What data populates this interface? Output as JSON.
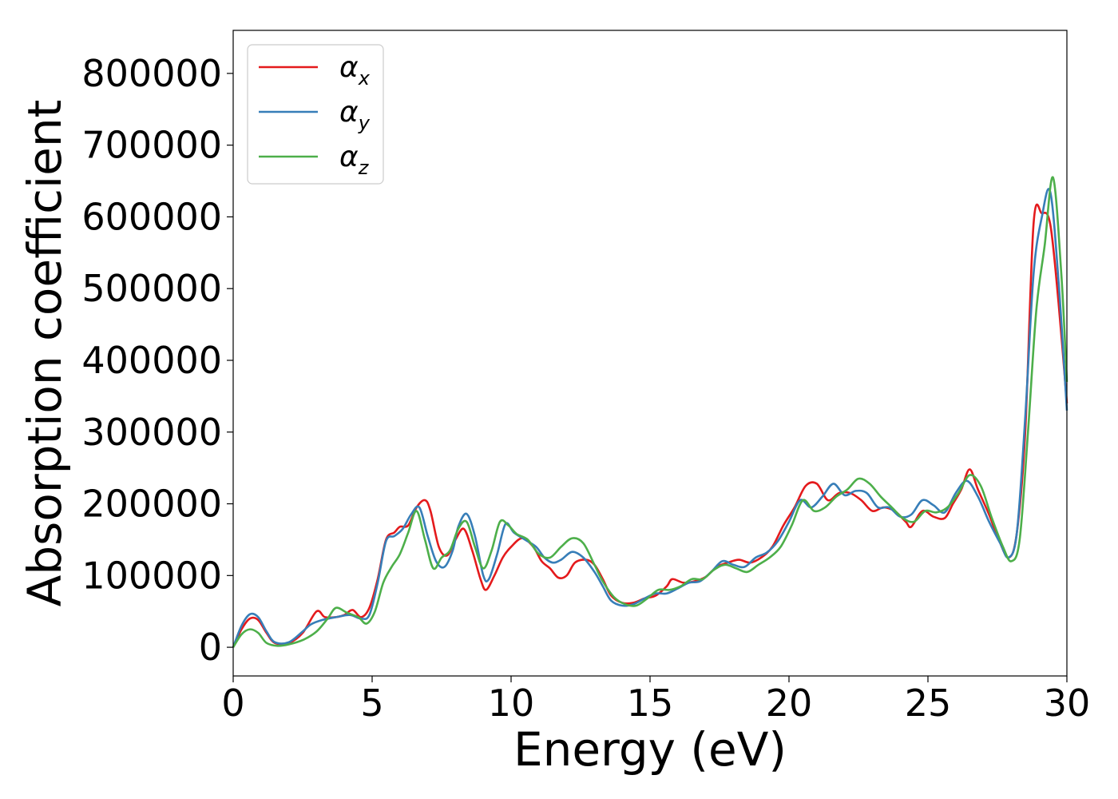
{
  "chart_data": {
    "type": "line",
    "title": "",
    "xlabel": "Energy (eV)",
    "ylabel": "Absorption coefficient",
    "xlim": [
      0,
      30
    ],
    "ylim": [
      -40000,
      860000
    ],
    "xticks": [
      0,
      5,
      10,
      15,
      20,
      25,
      30
    ],
    "xtick_labels": [
      "0",
      "5",
      "10",
      "15",
      "20",
      "25",
      "30"
    ],
    "yticks": [
      0,
      100000,
      200000,
      300000,
      400000,
      500000,
      600000,
      700000,
      800000
    ],
    "ytick_labels": [
      "0",
      "100000",
      "200000",
      "300000",
      "400000",
      "500000",
      "600000",
      "700000",
      "800000"
    ],
    "grid": false,
    "legend_position": "top-left",
    "series": [
      {
        "name": "α",
        "subscript": "x",
        "color": "#e41a1c",
        "points": [
          [
            0,
            0
          ],
          [
            0.3,
            25000
          ],
          [
            0.6,
            40000
          ],
          [
            0.9,
            38000
          ],
          [
            1.2,
            20000
          ],
          [
            1.5,
            6000
          ],
          [
            2.0,
            6000
          ],
          [
            2.5,
            20000
          ],
          [
            3.0,
            50000
          ],
          [
            3.3,
            42000
          ],
          [
            3.7,
            42000
          ],
          [
            4.0,
            45000
          ],
          [
            4.3,
            52000
          ],
          [
            4.6,
            42000
          ],
          [
            4.9,
            55000
          ],
          [
            5.2,
            95000
          ],
          [
            5.5,
            150000
          ],
          [
            5.8,
            160000
          ],
          [
            6.0,
            168000
          ],
          [
            6.3,
            170000
          ],
          [
            6.6,
            195000
          ],
          [
            6.9,
            205000
          ],
          [
            7.1,
            190000
          ],
          [
            7.4,
            140000
          ],
          [
            7.7,
            128000
          ],
          [
            8.0,
            150000
          ],
          [
            8.3,
            165000
          ],
          [
            8.6,
            135000
          ],
          [
            8.9,
            95000
          ],
          [
            9.1,
            80000
          ],
          [
            9.4,
            100000
          ],
          [
            9.7,
            125000
          ],
          [
            10.0,
            140000
          ],
          [
            10.4,
            152000
          ],
          [
            10.8,
            140000
          ],
          [
            11.1,
            120000
          ],
          [
            11.4,
            110000
          ],
          [
            11.7,
            97000
          ],
          [
            12.0,
            100000
          ],
          [
            12.3,
            118000
          ],
          [
            12.7,
            122000
          ],
          [
            13.0,
            115000
          ],
          [
            13.3,
            95000
          ],
          [
            13.6,
            72000
          ],
          [
            14.0,
            62000
          ],
          [
            14.4,
            62000
          ],
          [
            14.8,
            68000
          ],
          [
            15.2,
            72000
          ],
          [
            15.6,
            85000
          ],
          [
            15.8,
            95000
          ],
          [
            16.2,
            90000
          ],
          [
            16.6,
            92000
          ],
          [
            17.0,
            98000
          ],
          [
            17.4,
            112000
          ],
          [
            17.8,
            118000
          ],
          [
            18.2,
            122000
          ],
          [
            18.6,
            118000
          ],
          [
            19.0,
            125000
          ],
          [
            19.4,
            140000
          ],
          [
            19.8,
            170000
          ],
          [
            20.2,
            195000
          ],
          [
            20.6,
            225000
          ],
          [
            21.0,
            228000
          ],
          [
            21.4,
            205000
          ],
          [
            21.8,
            215000
          ],
          [
            22.2,
            215000
          ],
          [
            22.6,
            205000
          ],
          [
            23.0,
            190000
          ],
          [
            23.4,
            195000
          ],
          [
            23.8,
            190000
          ],
          [
            24.2,
            175000
          ],
          [
            24.4,
            168000
          ],
          [
            24.8,
            190000
          ],
          [
            25.2,
            182000
          ],
          [
            25.6,
            180000
          ],
          [
            25.9,
            200000
          ],
          [
            26.2,
            220000
          ],
          [
            26.5,
            248000
          ],
          [
            26.8,
            220000
          ],
          [
            27.2,
            185000
          ],
          [
            27.5,
            155000
          ],
          [
            27.9,
            125000
          ],
          [
            28.2,
            160000
          ],
          [
            28.5,
            300000
          ],
          [
            28.8,
            590000
          ],
          [
            29.1,
            605000
          ],
          [
            29.4,
            590000
          ],
          [
            29.7,
            480000
          ],
          [
            30.0,
            340000
          ]
        ]
      },
      {
        "name": "α",
        "subscript": "y",
        "color": "#377eb8",
        "points": [
          [
            0,
            0
          ],
          [
            0.3,
            30000
          ],
          [
            0.6,
            46000
          ],
          [
            0.9,
            42000
          ],
          [
            1.2,
            22000
          ],
          [
            1.5,
            7000
          ],
          [
            2.0,
            7000
          ],
          [
            2.5,
            22000
          ],
          [
            2.8,
            32000
          ],
          [
            3.2,
            38000
          ],
          [
            3.7,
            42000
          ],
          [
            4.2,
            45000
          ],
          [
            4.6,
            40000
          ],
          [
            4.9,
            45000
          ],
          [
            5.2,
            90000
          ],
          [
            5.5,
            148000
          ],
          [
            5.8,
            155000
          ],
          [
            6.1,
            165000
          ],
          [
            6.4,
            185000
          ],
          [
            6.7,
            195000
          ],
          [
            7.0,
            155000
          ],
          [
            7.3,
            120000
          ],
          [
            7.6,
            112000
          ],
          [
            7.9,
            135000
          ],
          [
            8.1,
            168000
          ],
          [
            8.4,
            186000
          ],
          [
            8.7,
            155000
          ],
          [
            9.0,
            100000
          ],
          [
            9.2,
            95000
          ],
          [
            9.5,
            130000
          ],
          [
            9.8,
            172000
          ],
          [
            10.1,
            160000
          ],
          [
            10.5,
            150000
          ],
          [
            10.9,
            140000
          ],
          [
            11.2,
            125000
          ],
          [
            11.5,
            118000
          ],
          [
            11.8,
            122000
          ],
          [
            12.2,
            133000
          ],
          [
            12.6,
            125000
          ],
          [
            13.0,
            105000
          ],
          [
            13.3,
            85000
          ],
          [
            13.6,
            65000
          ],
          [
            14.0,
            58000
          ],
          [
            14.4,
            60000
          ],
          [
            14.8,
            68000
          ],
          [
            15.2,
            75000
          ],
          [
            15.6,
            75000
          ],
          [
            16.0,
            82000
          ],
          [
            16.4,
            90000
          ],
          [
            16.8,
            92000
          ],
          [
            17.2,
            105000
          ],
          [
            17.6,
            120000
          ],
          [
            18.0,
            115000
          ],
          [
            18.4,
            112000
          ],
          [
            18.8,
            125000
          ],
          [
            19.2,
            132000
          ],
          [
            19.6,
            148000
          ],
          [
            20.0,
            175000
          ],
          [
            20.4,
            205000
          ],
          [
            20.8,
            195000
          ],
          [
            21.2,
            210000
          ],
          [
            21.6,
            228000
          ],
          [
            22.0,
            212000
          ],
          [
            22.4,
            218000
          ],
          [
            22.8,
            215000
          ],
          [
            23.2,
            195000
          ],
          [
            23.6,
            195000
          ],
          [
            24.0,
            182000
          ],
          [
            24.4,
            185000
          ],
          [
            24.8,
            205000
          ],
          [
            25.2,
            198000
          ],
          [
            25.6,
            188000
          ],
          [
            26.0,
            215000
          ],
          [
            26.4,
            232000
          ],
          [
            26.8,
            210000
          ],
          [
            27.2,
            175000
          ],
          [
            27.6,
            145000
          ],
          [
            27.9,
            125000
          ],
          [
            28.2,
            160000
          ],
          [
            28.5,
            320000
          ],
          [
            28.8,
            520000
          ],
          [
            29.1,
            600000
          ],
          [
            29.4,
            635000
          ],
          [
            29.7,
            510000
          ],
          [
            30.0,
            330000
          ]
        ]
      },
      {
        "name": "α",
        "subscript": "z",
        "color": "#4daf4a",
        "points": [
          [
            0,
            0
          ],
          [
            0.3,
            18000
          ],
          [
            0.6,
            25000
          ],
          [
            0.9,
            20000
          ],
          [
            1.2,
            6000
          ],
          [
            1.6,
            2000
          ],
          [
            2.0,
            4000
          ],
          [
            2.5,
            10000
          ],
          [
            3.0,
            22000
          ],
          [
            3.4,
            40000
          ],
          [
            3.7,
            55000
          ],
          [
            4.1,
            48000
          ],
          [
            4.5,
            42000
          ],
          [
            4.8,
            33000
          ],
          [
            5.1,
            50000
          ],
          [
            5.4,
            90000
          ],
          [
            5.7,
            112000
          ],
          [
            6.0,
            130000
          ],
          [
            6.3,
            160000
          ],
          [
            6.6,
            190000
          ],
          [
            6.9,
            150000
          ],
          [
            7.2,
            110000
          ],
          [
            7.5,
            125000
          ],
          [
            7.8,
            135000
          ],
          [
            8.1,
            165000
          ],
          [
            8.4,
            175000
          ],
          [
            8.7,
            140000
          ],
          [
            9.0,
            110000
          ],
          [
            9.3,
            135000
          ],
          [
            9.6,
            175000
          ],
          [
            9.9,
            170000
          ],
          [
            10.2,
            158000
          ],
          [
            10.6,
            150000
          ],
          [
            11.0,
            130000
          ],
          [
            11.4,
            125000
          ],
          [
            11.8,
            140000
          ],
          [
            12.2,
            152000
          ],
          [
            12.6,
            145000
          ],
          [
            13.0,
            115000
          ],
          [
            13.3,
            92000
          ],
          [
            13.7,
            70000
          ],
          [
            14.1,
            60000
          ],
          [
            14.5,
            58000
          ],
          [
            14.9,
            68000
          ],
          [
            15.3,
            80000
          ],
          [
            15.7,
            80000
          ],
          [
            16.1,
            85000
          ],
          [
            16.5,
            95000
          ],
          [
            16.9,
            95000
          ],
          [
            17.3,
            108000
          ],
          [
            17.7,
            115000
          ],
          [
            18.1,
            110000
          ],
          [
            18.5,
            105000
          ],
          [
            18.9,
            115000
          ],
          [
            19.3,
            125000
          ],
          [
            19.7,
            140000
          ],
          [
            20.1,
            170000
          ],
          [
            20.5,
            205000
          ],
          [
            20.9,
            190000
          ],
          [
            21.3,
            195000
          ],
          [
            21.7,
            210000
          ],
          [
            22.1,
            220000
          ],
          [
            22.5,
            235000
          ],
          [
            22.9,
            228000
          ],
          [
            23.3,
            210000
          ],
          [
            23.7,
            195000
          ],
          [
            24.1,
            180000
          ],
          [
            24.5,
            175000
          ],
          [
            24.9,
            190000
          ],
          [
            25.3,
            188000
          ],
          [
            25.7,
            195000
          ],
          [
            26.1,
            215000
          ],
          [
            26.5,
            240000
          ],
          [
            26.9,
            225000
          ],
          [
            27.3,
            180000
          ],
          [
            27.7,
            140000
          ],
          [
            28.0,
            120000
          ],
          [
            28.3,
            150000
          ],
          [
            28.6,
            300000
          ],
          [
            28.9,
            470000
          ],
          [
            29.2,
            560000
          ],
          [
            29.5,
            655000
          ],
          [
            29.8,
            520000
          ],
          [
            30.0,
            370000
          ]
        ]
      }
    ]
  }
}
